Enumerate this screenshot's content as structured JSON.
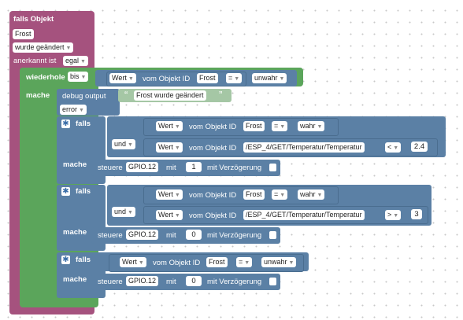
{
  "colors": {
    "event": "#a5527e",
    "loop": "#5ba55b",
    "logic": "#5b80a5",
    "debug": "#5b7fa5",
    "text": "#a5c7a5"
  },
  "event_block": {
    "title": "falls Objekt",
    "object": "Frost",
    "trigger": "wurde geändert",
    "ack_label": "anerkannt ist",
    "ack_value": "egal"
  },
  "loop_block": {
    "label": "wiederhole",
    "mode": "bis",
    "do_label": "mache",
    "condition": {
      "value": "Wert",
      "from": "vom Objekt ID",
      "object": "Frost",
      "op": "=",
      "compare": "unwahr"
    }
  },
  "debug_block": {
    "label": "debug output",
    "text": "Frost wurde geändert",
    "level": "error"
  },
  "if_blocks": [
    {
      "if_label": "falls",
      "do_label": "mache",
      "and_label": "und",
      "cond1": {
        "value": "Wert",
        "from": "vom Objekt ID",
        "object": "Frost",
        "op": "=",
        "compare": "wahr"
      },
      "cond2": {
        "value": "Wert",
        "from": "vom Objekt ID",
        "object": "/ESP_4/GET/Temperatur/Temperatur",
        "op": "<",
        "compare": "2.4"
      },
      "action": {
        "label": "steuere",
        "object": "GPIO.12",
        "with": "mit",
        "number": "1",
        "delay": "mit Verzögerung"
      }
    },
    {
      "if_label": "falls",
      "do_label": "mache",
      "and_label": "und",
      "cond1": {
        "value": "Wert",
        "from": "vom Objekt ID",
        "object": "Frost",
        "op": "=",
        "compare": "wahr"
      },
      "cond2": {
        "value": "Wert",
        "from": "vom Objekt ID",
        "object": "/ESP_4/GET/Temperatur/Temperatur",
        "op": ">",
        "compare": "3"
      },
      "action": {
        "label": "steuere",
        "object": "GPIO.12",
        "with": "mit",
        "number": "0",
        "delay": "mit Verzögerung"
      }
    },
    {
      "if_label": "falls",
      "do_label": "mache",
      "cond1": {
        "value": "Wert",
        "from": "vom Objekt ID",
        "object": "Frost",
        "op": "=",
        "compare": "unwahr"
      },
      "action": {
        "label": "steuere",
        "object": "GPIO.12",
        "with": "mit",
        "number": "0",
        "delay": "mit Verzögerung"
      }
    }
  ],
  "icons": {
    "gear": "gear-icon",
    "dropdown": "triangle-down",
    "quote_open": "“",
    "quote_close": "”"
  }
}
